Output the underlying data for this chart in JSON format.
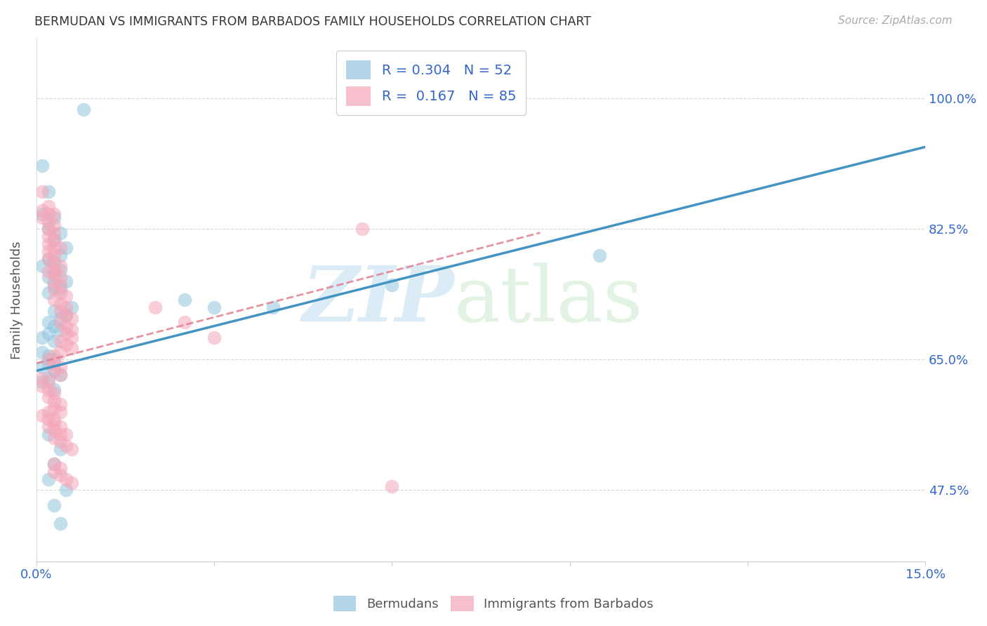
{
  "title": "BERMUDAN VS IMMIGRANTS FROM BARBADOS FAMILY HOUSEHOLDS CORRELATION CHART",
  "source": "Source: ZipAtlas.com",
  "ylabel": "Family Households",
  "ytick_labels": [
    "47.5%",
    "65.0%",
    "82.5%",
    "100.0%"
  ],
  "ytick_vals": [
    0.475,
    0.65,
    0.825,
    1.0
  ],
  "legend_r_n": [
    {
      "r": "0.304",
      "n": "52"
    },
    {
      "r": "0.167",
      "n": "85"
    }
  ],
  "legend_entries": [
    {
      "label": "Bermudans"
    },
    {
      "label": "Immigrants from Barbados"
    }
  ],
  "blue_color": "#92c5de",
  "pink_color": "#f4a6b8",
  "line_blue_color": "#4393c3",
  "line_pink_color": "#e08090",
  "xlim": [
    0.0,
    0.15
  ],
  "ylim": [
    0.38,
    1.08
  ],
  "blue_line_x": [
    0.0,
    0.15
  ],
  "blue_line_y": [
    0.635,
    0.935
  ],
  "pink_line_x": [
    0.0,
    0.085
  ],
  "pink_line_y": [
    0.645,
    0.82
  ],
  "blue_scatter_x": [
    0.008,
    0.001,
    0.002,
    0.001,
    0.003,
    0.002,
    0.004,
    0.003,
    0.005,
    0.004,
    0.002,
    0.003,
    0.001,
    0.004,
    0.003,
    0.002,
    0.005,
    0.003,
    0.004,
    0.002,
    0.006,
    0.003,
    0.005,
    0.004,
    0.002,
    0.003,
    0.004,
    0.002,
    0.001,
    0.003,
    0.025,
    0.03,
    0.04,
    0.06,
    0.095,
    0.001,
    0.002,
    0.003,
    0.002,
    0.001,
    0.003,
    0.004,
    0.002,
    0.001,
    0.003,
    0.002,
    0.004,
    0.003,
    0.002,
    0.005,
    0.003,
    0.004
  ],
  "blue_scatter_y": [
    0.985,
    0.91,
    0.875,
    0.845,
    0.84,
    0.825,
    0.82,
    0.81,
    0.8,
    0.79,
    0.785,
    0.78,
    0.775,
    0.77,
    0.765,
    0.76,
    0.755,
    0.75,
    0.745,
    0.74,
    0.72,
    0.715,
    0.71,
    0.705,
    0.7,
    0.695,
    0.69,
    0.685,
    0.68,
    0.675,
    0.73,
    0.72,
    0.72,
    0.75,
    0.79,
    0.66,
    0.655,
    0.65,
    0.645,
    0.64,
    0.635,
    0.63,
    0.625,
    0.62,
    0.61,
    0.55,
    0.53,
    0.51,
    0.49,
    0.475,
    0.455,
    0.43
  ],
  "pink_scatter_x": [
    0.001,
    0.002,
    0.001,
    0.002,
    0.003,
    0.001,
    0.002,
    0.003,
    0.002,
    0.003,
    0.002,
    0.003,
    0.002,
    0.003,
    0.004,
    0.002,
    0.003,
    0.002,
    0.003,
    0.004,
    0.003,
    0.002,
    0.003,
    0.004,
    0.003,
    0.004,
    0.003,
    0.004,
    0.005,
    0.003,
    0.004,
    0.005,
    0.004,
    0.005,
    0.006,
    0.004,
    0.005,
    0.006,
    0.005,
    0.006,
    0.004,
    0.005,
    0.006,
    0.004,
    0.003,
    0.002,
    0.003,
    0.004,
    0.003,
    0.004,
    0.001,
    0.002,
    0.001,
    0.002,
    0.003,
    0.002,
    0.003,
    0.004,
    0.003,
    0.004,
    0.001,
    0.002,
    0.003,
    0.002,
    0.003,
    0.004,
    0.003,
    0.004,
    0.005,
    0.006,
    0.02,
    0.025,
    0.03,
    0.002,
    0.003,
    0.004,
    0.005,
    0.003,
    0.004,
    0.003,
    0.004,
    0.005,
    0.006,
    0.055,
    0.06
  ],
  "pink_scatter_y": [
    0.875,
    0.855,
    0.85,
    0.845,
    0.845,
    0.84,
    0.835,
    0.83,
    0.825,
    0.82,
    0.815,
    0.81,
    0.805,
    0.8,
    0.8,
    0.795,
    0.79,
    0.785,
    0.78,
    0.775,
    0.77,
    0.768,
    0.765,
    0.76,
    0.755,
    0.75,
    0.745,
    0.74,
    0.735,
    0.73,
    0.725,
    0.72,
    0.715,
    0.71,
    0.705,
    0.7,
    0.695,
    0.69,
    0.685,
    0.68,
    0.675,
    0.67,
    0.665,
    0.66,
    0.655,
    0.65,
    0.645,
    0.64,
    0.635,
    0.63,
    0.625,
    0.62,
    0.615,
    0.61,
    0.605,
    0.6,
    0.595,
    0.59,
    0.585,
    0.58,
    0.575,
    0.57,
    0.565,
    0.56,
    0.555,
    0.55,
    0.545,
    0.54,
    0.535,
    0.53,
    0.72,
    0.7,
    0.68,
    0.58,
    0.57,
    0.56,
    0.55,
    0.51,
    0.505,
    0.5,
    0.495,
    0.49,
    0.485,
    0.825,
    0.48
  ]
}
